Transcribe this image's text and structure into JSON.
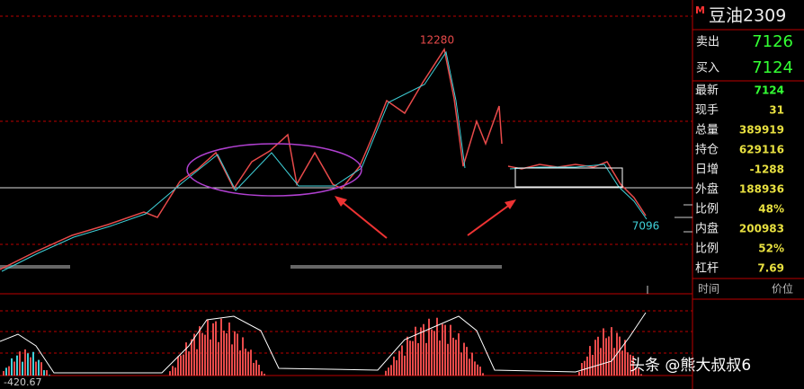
{
  "contract": {
    "marker": "M",
    "name": "豆油2309"
  },
  "quotes": [
    {
      "label": "卖出",
      "value": 7126
    },
    {
      "label": "买入",
      "value": 7124
    }
  ],
  "stats": [
    {
      "label": "最新",
      "value": 7124
    },
    {
      "label": "现手",
      "value": 31
    },
    {
      "label": "总量",
      "value": 389919
    },
    {
      "label": "持仓",
      "value": 629116
    },
    {
      "label": "日增",
      "value": -1288
    },
    {
      "label": "外盘",
      "value": 188936
    },
    {
      "label": "比例",
      "value": "48%"
    },
    {
      "label": "内盘",
      "value": 200983
    },
    {
      "label": "比例",
      "value": "52%"
    },
    {
      "label": "杠杆",
      "value": 7.69
    }
  ],
  "ticks_header": {
    "time": "时间",
    "price": "价位"
  },
  "chart": {
    "high_label": 12280,
    "low_label": 7096,
    "indicator_value": -420.67
  },
  "watermark": "头条 @熊大叔叔6"
}
